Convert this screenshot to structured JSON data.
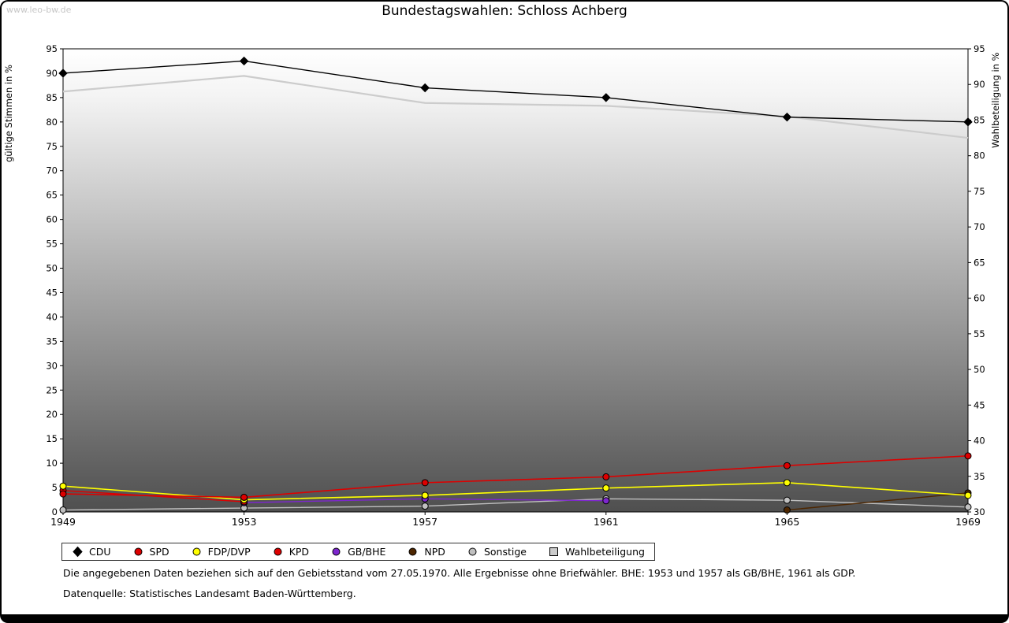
{
  "watermark": "www.leo-bw.de",
  "title": "Bundestagswahlen: Schloss Achberg",
  "chart_data": {
    "type": "line",
    "categories": [
      "1949",
      "1953",
      "1957",
      "1961",
      "1965",
      "1969"
    ],
    "left_axis": {
      "label": "gültige Stimmen in %",
      "min": 0,
      "max": 95,
      "step": 5
    },
    "right_axis": {
      "label": "Wahlbeteiligung in %",
      "min": 30,
      "max": 95,
      "step": 5
    },
    "plot_background": {
      "top": "#ffffff",
      "bottom": "#4f4f4f"
    },
    "series": [
      {
        "name": "CDU",
        "color": "#000000",
        "marker": "diamond",
        "axis": "left",
        "line_width": 1.4,
        "values": [
          90,
          92.5,
          87,
          85,
          81,
          80
        ]
      },
      {
        "name": "SPD",
        "color": "#dd0000",
        "marker": "circle",
        "axis": "left",
        "line_width": 1.6,
        "values": [
          3.7,
          3,
          6,
          7.2,
          9.5,
          11.5
        ]
      },
      {
        "name": "FDP/DVP",
        "color": "#ffff00",
        "marker": "circle",
        "axis": "left",
        "line_width": 1.6,
        "values": [
          5.3,
          2.5,
          3.4,
          4.9,
          6,
          3.4
        ]
      },
      {
        "name": "KPD",
        "color": "#dd0000",
        "marker": "circle",
        "axis": "left",
        "line_width": 1.4,
        "values": [
          4.4,
          2.1,
          null,
          null,
          null,
          null
        ]
      },
      {
        "name": "GB/BHE",
        "color": "#7d26cd",
        "marker": "circle",
        "axis": "left",
        "line_width": 1.4,
        "values": [
          null,
          1.9,
          2.7,
          2.3,
          null,
          null
        ]
      },
      {
        "name": "NPD",
        "color": "#4d2600",
        "marker": "circle",
        "axis": "left",
        "line_width": 1.4,
        "values": [
          null,
          null,
          null,
          null,
          0.4,
          3.9
        ]
      },
      {
        "name": "Sonstige",
        "color": "#c0c0c0",
        "marker": "circle",
        "axis": "left",
        "line_width": 1.4,
        "values": [
          0.4,
          0.8,
          1.2,
          2.7,
          2.4,
          1.0
        ]
      },
      {
        "name": "Wahlbeteiligung",
        "color": "#cccccc",
        "marker": "square",
        "axis": "right",
        "line_width": 2.2,
        "points": false,
        "values": [
          89,
          91.2,
          87.4,
          87,
          85.5,
          82.5
        ]
      }
    ]
  },
  "footnotes": {
    "line1": "Die angegebenen Daten beziehen sich auf den Gebietsstand vom 27.05.1970. Alle Ergebnisse ohne Briefwähler. BHE: 1953 und 1957 als GB/BHE, 1961 als GDP.",
    "line2": "Datenquelle: Statistisches Landesamt Baden-Württemberg."
  }
}
